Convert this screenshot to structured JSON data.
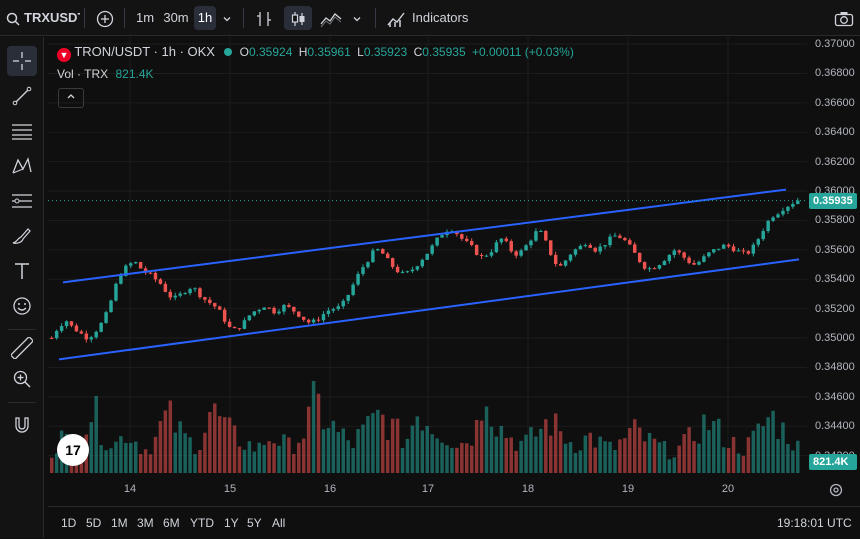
{
  "toolbar": {
    "symbol": "TRXUSDT",
    "intervals": [
      "1m",
      "30m",
      "1h"
    ],
    "active_interval": "1h",
    "indicators_label": "Indicators"
  },
  "legend": {
    "title": "TRON/USDT · 1h · OKX",
    "open_label": "O",
    "open": "0.35924",
    "high_label": "H",
    "high": "0.35961",
    "low_label": "L",
    "low": "0.35923",
    "close_label": "C",
    "close": "0.35935",
    "change": "+0.00011 (+0.03%)",
    "volume_label": "Vol · TRX",
    "volume": "821.4K"
  },
  "colors": {
    "up": "#26a69a",
    "down": "#ef5350",
    "channel": "#2962ff",
    "background": "#0f0f0f"
  },
  "left_tools": [
    "crosshair-icon",
    "trend-line-icon",
    "horizontal-lines-icon",
    "pattern-icon",
    "fib-icon",
    "brush-icon",
    "text-icon",
    "emoji-icon",
    "ruler-icon",
    "zoom-in-icon",
    "magnet-icon"
  ],
  "range_buttons": [
    "1D",
    "5D",
    "1M",
    "3M",
    "6M",
    "YTD",
    "1Y",
    "5Y",
    "All"
  ],
  "clock": "19:18:01 UTC",
  "chart_data": {
    "type": "candlestick",
    "symbol": "TRON/USDT",
    "timeframe": "1h",
    "exchange": "OKX",
    "last_price": 0.35935,
    "last_price_label": "0.35935",
    "last_volume_label": "821.4K",
    "y_ticks": [
      "0.37000",
      "0.36800",
      "0.36600",
      "0.36400",
      "0.36200",
      "0.36000",
      "0.35800",
      "0.35600",
      "0.35400",
      "0.35200",
      "0.35000",
      "0.34800",
      "0.34600",
      "0.34400",
      "0.34200"
    ],
    "ylim": [
      0.34082,
      0.37048
    ],
    "x_ticks": [
      "14",
      "15",
      "16",
      "17",
      "18",
      "19",
      "20"
    ],
    "keys": [
      [
        0.35,
        0.3506,
        0.351,
        0.3512,
        0.3507,
        0.3505,
        0.3502,
        0.35,
        0.3503,
        0.3507,
        0.3512,
        0.352,
        0.3532,
        0.3542,
        0.3547,
        0.355,
        0.3552,
        0.3548,
        0.3545,
        0.3543,
        0.354,
        0.3537,
        0.3532,
        0.3528,
        0.3527,
        0.353,
        0.3533,
        0.3535,
        0.3532,
        0.3528,
        0.3525,
        0.3523,
        0.352,
        0.3515,
        0.3508,
        0.3505,
        0.3507,
        0.351,
        0.3515,
        0.3518,
        0.352,
        0.3522,
        0.352,
        0.3518,
        0.352,
        0.3522,
        0.352,
        0.3518,
        0.3515,
        0.3512,
        0.351,
        0.3512,
        0.3515,
        0.3518,
        0.352,
        0.352,
        0.3522,
        0.3528,
        0.3535,
        0.3542,
        0.3548,
        0.3553,
        0.3558,
        0.356,
        0.3557,
        0.3552,
        0.3548,
        0.3545,
        0.3543,
        0.3545,
        0.3548,
        0.3552,
        0.3556,
        0.356,
        0.3565,
        0.357,
        0.3573,
        0.3575,
        0.3572,
        0.3568,
        0.3565,
        0.3562,
        0.3558,
        0.3555,
        0.3557,
        0.356,
        0.3565,
        0.3568,
        0.3563,
        0.3558,
        0.3557,
        0.356,
        0.3565,
        0.357,
        0.3574,
        0.3568,
        0.356,
        0.3552,
        0.3548,
        0.3552,
        0.3557,
        0.356,
        0.3562,
        0.3565,
        0.3563,
        0.356,
        0.3562,
        0.3565,
        0.3568,
        0.357,
        0.3568,
        0.3565,
        0.356,
        0.3555,
        0.355,
        0.3547,
        0.3548,
        0.355,
        0.3553,
        0.3556,
        0.356,
        0.3558,
        0.3555,
        0.3552,
        0.355,
        0.3552,
        0.3555,
        0.3558,
        0.356,
        0.3562,
        0.3563,
        0.3562,
        0.356,
        0.3558,
        0.3557,
        0.356,
        0.3565,
        0.3572,
        0.3578,
        0.3583,
        0.3585,
        0.3588,
        0.359,
        0.3592,
        0.3594
      ]
    ],
    "volume_scale": [
      0,
      1
    ],
    "volume_keys": [
      0.2,
      0.3,
      0.35,
      0.28,
      0.25,
      0.3,
      0.4,
      0.55,
      0.6,
      0.45,
      0.35,
      0.3,
      0.28,
      0.32,
      0.4,
      0.35,
      0.3,
      0.25,
      0.22,
      0.3,
      0.35,
      0.5,
      0.55,
      0.48,
      0.4,
      0.35,
      0.3,
      0.28,
      0.3,
      0.45,
      0.6,
      0.55,
      0.5,
      0.42,
      0.38,
      0.33,
      0.3,
      0.28,
      0.25,
      0.22,
      0.3,
      0.33,
      0.35,
      0.3,
      0.28,
      0.25,
      0.3,
      0.35,
      0.4,
      0.6,
      0.7,
      0.55,
      0.5,
      0.45,
      0.38,
      0.35,
      0.3,
      0.28,
      0.35,
      0.4,
      0.45,
      0.5,
      0.55,
      0.5,
      0.45,
      0.4,
      0.35,
      0.3,
      0.45,
      0.6,
      0.55,
      0.5,
      0.45,
      0.4,
      0.38,
      0.35,
      0.3,
      0.28,
      0.3,
      0.35,
      0.4,
      0.55,
      1.0,
      0.6,
      0.5,
      0.42,
      0.38,
      0.33,
      0.3,
      0.28,
      0.3,
      0.35,
      0.4,
      0.45,
      0.5,
      0.45,
      0.4,
      0.35,
      0.3,
      0.28,
      0.3,
      0.33,
      0.35,
      0.3,
      0.28,
      0.25,
      0.22,
      0.28,
      0.3,
      0.35,
      0.4,
      0.38,
      0.33,
      0.3,
      0.28,
      0.25,
      0.22,
      0.2,
      0.22,
      0.25,
      0.3,
      0.35,
      0.4,
      0.45,
      0.5,
      0.45,
      0.4,
      0.35,
      0.3,
      0.28,
      0.25,
      0.22,
      0.3,
      0.35,
      0.42,
      0.5,
      0.55,
      0.48,
      0.42,
      0.38,
      0.3,
      0.25
    ]
  }
}
